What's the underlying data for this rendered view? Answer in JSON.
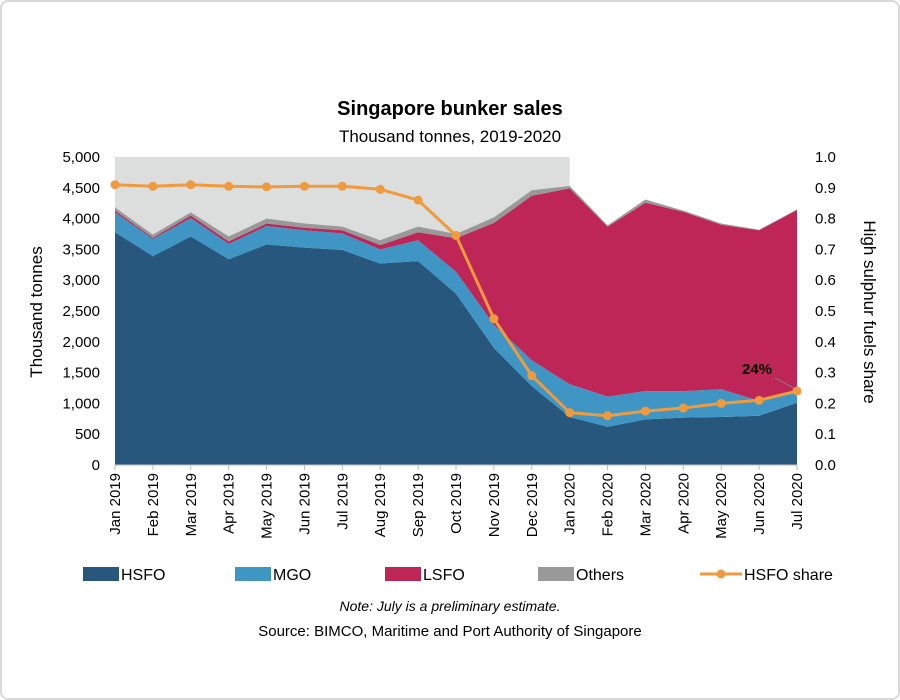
{
  "chart_data": {
    "type": "area",
    "title": "Singapore bunker sales",
    "subtitle": "Thousand tonnes, 2019-2020",
    "ylabel": "Thousand tonnes",
    "y2label": "High sulphur fuels share",
    "ylim": [
      0,
      5000
    ],
    "y2lim": [
      0,
      1.0
    ],
    "yticks": [
      "0",
      "500",
      "1,000",
      "1,500",
      "2,000",
      "2,500",
      "3,000",
      "3,500",
      "4,000",
      "4,500",
      "5,000"
    ],
    "y2ticks": [
      "0.0",
      "0.1",
      "0.2",
      "0.3",
      "0.4",
      "0.5",
      "0.6",
      "0.7",
      "0.8",
      "0.9",
      "1.0"
    ],
    "categories": [
      "Jan 2019",
      "Feb 2019",
      "Mar 2019",
      "Apr 2019",
      "May 2019",
      "Jun 2019",
      "Jul 2019",
      "Aug 2019",
      "Sep 2019",
      "Oct 2019",
      "Nov 2019",
      "Dec 2019",
      "Jan 2020",
      "Feb 2020",
      "Mar 2020",
      "Apr 2020",
      "May 2020",
      "Jun 2020",
      "Jul 2020"
    ],
    "shaded_period": {
      "from": "Jan 2019",
      "to": "Jan 2020",
      "ymax": 5000
    },
    "series": [
      {
        "name": "HSFO",
        "kind": "stacked-area",
        "color": "#27577d",
        "values": [
          3780,
          3390,
          3710,
          3340,
          3580,
          3530,
          3490,
          3270,
          3310,
          2780,
          1900,
          1280,
          780,
          620,
          740,
          770,
          780,
          800,
          1010
        ]
      },
      {
        "name": "MGO",
        "kind": "stacked-area",
        "color": "#3f96c4",
        "values": [
          320,
          280,
          300,
          250,
          300,
          280,
          270,
          230,
          340,
          360,
          380,
          420,
          530,
          490,
          460,
          430,
          450,
          240,
          200
        ]
      },
      {
        "name": "LSFO",
        "kind": "stacked-area",
        "color": "#bf2658",
        "values": [
          30,
          20,
          40,
          40,
          40,
          40,
          50,
          70,
          130,
          540,
          1650,
          2670,
          3180,
          2760,
          3060,
          2910,
          2670,
          2770,
          2930
        ]
      },
      {
        "name": "Others",
        "kind": "stacked-area",
        "color": "#999999",
        "values": [
          50,
          50,
          50,
          80,
          80,
          70,
          60,
          80,
          90,
          70,
          90,
          90,
          40,
          20,
          50,
          20,
          20,
          10,
          10
        ]
      },
      {
        "name": "HSFO share",
        "kind": "line",
        "axis": "right",
        "color": "#ef9a3d",
        "values": [
          0.91,
          0.905,
          0.91,
          0.905,
          0.903,
          0.905,
          0.905,
          0.895,
          0.86,
          0.745,
          0.475,
          0.29,
          0.17,
          0.16,
          0.175,
          0.185,
          0.2,
          0.21,
          0.24
        ]
      }
    ],
    "annotation": {
      "text": "24%",
      "category": "Jul 2020",
      "series": "HSFO share"
    },
    "legend_position": "bottom",
    "note": "Note: July is a preliminary estimate.",
    "source": "Source: BIMCO, Maritime and Port Authority of Singapore"
  }
}
